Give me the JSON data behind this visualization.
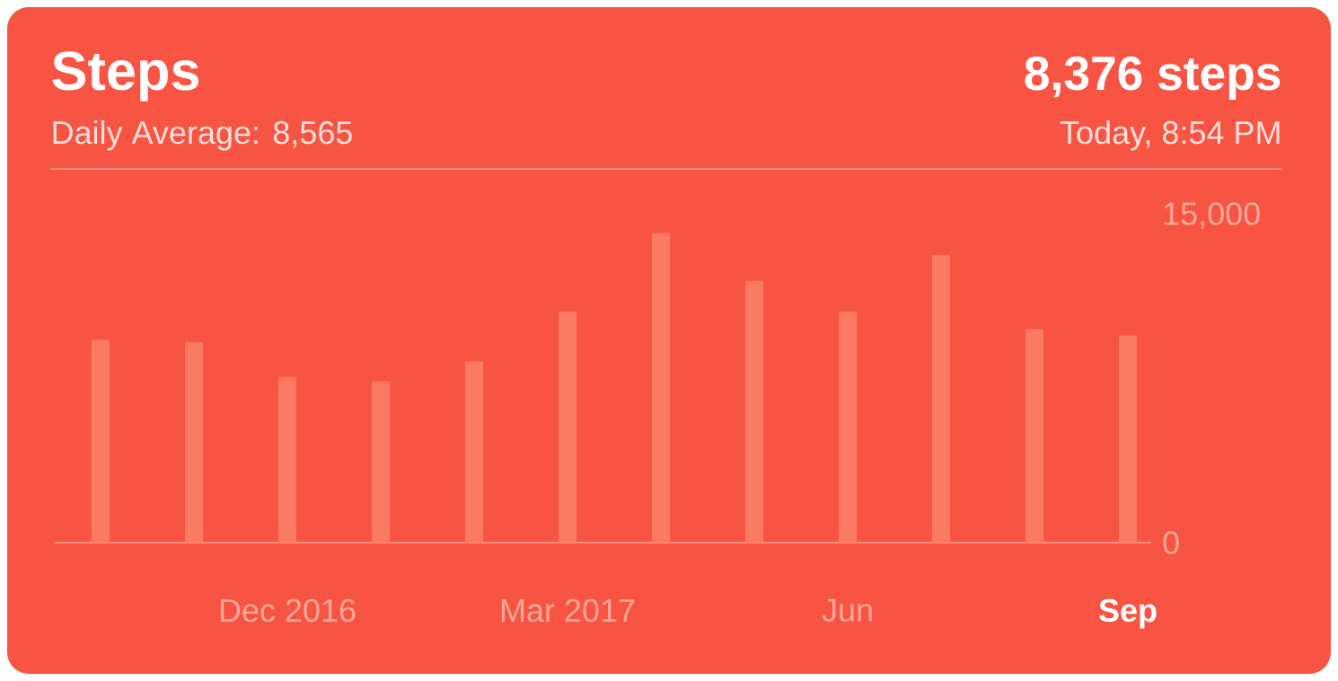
{
  "chart_data": {
    "type": "bar",
    "title": "Steps",
    "subtitle": "Daily Average: 8,565",
    "annotations": [
      "8,376 steps",
      "Today, 8:54 PM"
    ],
    "categories": [
      null,
      null,
      "Dec 2016",
      null,
      null,
      "Mar 2017",
      null,
      null,
      "Jun",
      null,
      null,
      "Sep"
    ],
    "values": [
      9300,
      9200,
      7600,
      7400,
      8300,
      10600,
      14200,
      12000,
      10600,
      13200,
      9800,
      9500
    ],
    "color": "#fb7a64",
    "ylim": [
      0,
      15000
    ],
    "yticks": [
      0,
      {
        "value": 15000,
        "label": "15,000"
      }
    ]
  }
}
